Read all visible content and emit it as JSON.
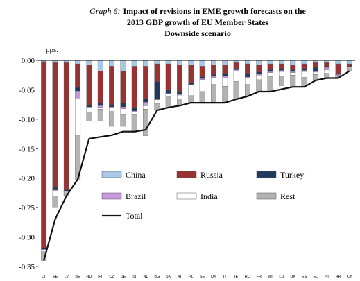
{
  "chart_data": {
    "type": "bar",
    "stacked": true,
    "title_label": "Graph 6:",
    "title_lines": [
      "Impact of revisions in EME growth forecasts on the",
      "2013 GDP growth of EU Member States",
      "Downside scenario"
    ],
    "ylabel": "pps.",
    "ylim": [
      -0.35,
      0.0
    ],
    "y_ticks": [
      "0.00",
      "-0.05",
      "-0.10",
      "-0.15",
      "-0.20",
      "-0.25",
      "-0.30",
      "-0.35"
    ],
    "y_tick_values": [
      0.0,
      -0.05,
      -0.1,
      -0.15,
      -0.2,
      -0.25,
      -0.3,
      -0.35
    ],
    "grid": false,
    "legend_position": "inside-bottom-left",
    "categories": [
      "LT",
      "EE",
      "LV",
      "BE",
      "HU",
      "FI",
      "CZ",
      "DE",
      "SI",
      "NL",
      "BG",
      "SK",
      "AT",
      "PL",
      "SE",
      "DK",
      "IT",
      "IE",
      "RO",
      "FR",
      "MT",
      "LU",
      "UK",
      "ES",
      "EL",
      "PT",
      "HR",
      "CY"
    ],
    "series": [
      {
        "name": "China",
        "color": "#a9c8e6",
        "values": [
          -0.002,
          -0.004,
          -0.004,
          -0.006,
          -0.008,
          -0.018,
          -0.01,
          -0.018,
          -0.01,
          -0.01,
          -0.006,
          -0.006,
          -0.008,
          -0.008,
          -0.01,
          -0.008,
          -0.008,
          -0.004,
          -0.006,
          -0.008,
          -0.006,
          -0.006,
          -0.008,
          -0.006,
          -0.004,
          -0.004,
          -0.006,
          -0.006
        ]
      },
      {
        "name": "Russia",
        "color": "#993333",
        "values": [
          -0.317,
          -0.212,
          -0.216,
          -0.04,
          -0.068,
          -0.055,
          -0.065,
          -0.055,
          -0.07,
          -0.055,
          -0.03,
          -0.045,
          -0.045,
          -0.03,
          -0.018,
          -0.016,
          -0.014,
          -0.01,
          -0.016,
          -0.012,
          -0.01,
          -0.008,
          -0.008,
          -0.008,
          -0.008,
          -0.006,
          -0.016,
          -0.004
        ]
      },
      {
        "name": "Turkey",
        "color": "#1f3a5c",
        "values": [
          -0.002,
          -0.004,
          -0.002,
          -0.006,
          -0.003,
          -0.004,
          -0.004,
          -0.006,
          -0.006,
          -0.006,
          -0.03,
          -0.005,
          -0.004,
          -0.003,
          -0.003,
          -0.003,
          -0.005,
          -0.002,
          -0.006,
          -0.003,
          -0.003,
          -0.003,
          -0.003,
          -0.003,
          -0.006,
          -0.002,
          -0.002,
          -0.001
        ]
      },
      {
        "name": "Brazil",
        "color": "#c79ae0",
        "values": [
          -0.001,
          -0.002,
          -0.001,
          -0.012,
          -0.002,
          -0.003,
          -0.002,
          -0.003,
          -0.002,
          -0.006,
          -0.001,
          -0.001,
          -0.002,
          -0.001,
          -0.002,
          -0.002,
          -0.003,
          -0.002,
          -0.001,
          -0.002,
          -0.002,
          -0.002,
          -0.002,
          -0.002,
          -0.002,
          -0.004,
          -0.001,
          -0.001
        ]
      },
      {
        "name": "India",
        "color": "#ffffff",
        "values": [
          -0.003,
          -0.01,
          -0.002,
          -0.063,
          -0.007,
          -0.003,
          -0.006,
          -0.01,
          -0.004,
          -0.006,
          -0.006,
          -0.005,
          -0.008,
          -0.018,
          -0.02,
          -0.012,
          -0.014,
          -0.018,
          -0.012,
          -0.008,
          -0.006,
          -0.008,
          -0.004,
          -0.01,
          -0.004,
          -0.006,
          -0.001,
          -0.002
        ]
      },
      {
        "name": "Rest",
        "color": "#b3b3b3",
        "values": [
          -0.015,
          -0.018,
          -0.005,
          -0.075,
          -0.015,
          -0.02,
          -0.025,
          -0.02,
          -0.03,
          -0.045,
          -0.012,
          -0.018,
          -0.01,
          -0.012,
          -0.02,
          -0.032,
          -0.028,
          -0.03,
          -0.02,
          -0.02,
          -0.026,
          -0.016,
          -0.02,
          -0.016,
          -0.01,
          -0.008,
          -0.004,
          -0.004
        ]
      }
    ],
    "total": {
      "name": "Total",
      "color": "#111111",
      "values": [
        -0.34,
        -0.27,
        -0.23,
        -0.202,
        -0.133,
        -0.13,
        -0.127,
        -0.121,
        -0.121,
        -0.118,
        -0.085,
        -0.08,
        -0.077,
        -0.072,
        -0.072,
        -0.072,
        -0.072,
        -0.066,
        -0.061,
        -0.053,
        -0.053,
        -0.049,
        -0.045,
        -0.045,
        -0.034,
        -0.03,
        -0.03,
        -0.018
      ]
    }
  }
}
